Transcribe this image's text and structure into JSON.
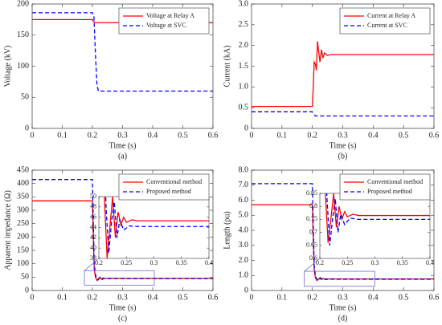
{
  "chart_data": [
    {
      "type": "line",
      "ylabel": "Voltage (kV)",
      "xlabel": "Time (s)",
      "caption": "(a)",
      "xlim": [
        0,
        0.6
      ],
      "xticks": [
        0,
        0.1,
        0.2,
        0.3,
        0.4,
        0.5,
        0.6
      ],
      "ylim": [
        0,
        200
      ],
      "yticks": [
        0,
        50,
        100,
        150,
        200
      ],
      "legend": "upper right",
      "series": [
        {
          "name": "Voltage at Relay A",
          "color": "#ff0000",
          "dashed": false,
          "x": [
            0,
            0.2,
            0.203,
            0.21,
            0.6
          ],
          "values": [
            175,
            175,
            172,
            170,
            170
          ]
        },
        {
          "name": "Voltage at SVC",
          "color": "#0000ff",
          "dashed": true,
          "x": [
            0,
            0.2,
            0.205,
            0.21,
            0.215,
            0.22,
            0.6
          ],
          "values": [
            186,
            186,
            180,
            120,
            70,
            60,
            60
          ]
        }
      ]
    },
    {
      "type": "line",
      "ylabel": "Current (kA)",
      "xlabel": "Time (s)",
      "caption": "(b)",
      "xlim": [
        0,
        0.6
      ],
      "xticks": [
        0,
        0.1,
        0.2,
        0.3,
        0.4,
        0.5,
        0.6
      ],
      "ylim": [
        0,
        3
      ],
      "yticks": [
        0,
        0.5,
        {
          "value": 1,
          "label": "1.0"
        },
        1.5,
        {
          "value": 2,
          "label": "2.0"
        },
        2.5,
        {
          "value": 3,
          "label": "3.0"
        }
      ],
      "legend": "upper right",
      "series": [
        {
          "name": "Current at Relay A",
          "color": "#ff0000",
          "dashed": false,
          "x": [
            0,
            0.2,
            0.203,
            0.206,
            0.21,
            0.213,
            0.217,
            0.22,
            0.225,
            0.23,
            0.235,
            0.24,
            0.25,
            0.26,
            0.6
          ],
          "values": [
            0.53,
            0.53,
            1.0,
            1.6,
            1.55,
            1.4,
            2.1,
            1.9,
            1.6,
            1.9,
            1.7,
            1.82,
            1.76,
            1.78,
            1.78
          ]
        },
        {
          "name": "Current at SVC",
          "color": "#0000ff",
          "dashed": true,
          "x": [
            0,
            0.2,
            0.21,
            0.6
          ],
          "values": [
            0.4,
            0.4,
            0.3,
            0.3
          ]
        }
      ]
    },
    {
      "type": "line",
      "ylabel": "Apparent impedance (Ω)",
      "xlabel": "Time (s)",
      "caption": "(c)",
      "xlim": [
        0,
        0.6
      ],
      "xticks": [
        0,
        0.1,
        0.2,
        0.3,
        0.4,
        0.5,
        0.6
      ],
      "ylim": [
        0,
        450
      ],
      "yticks": [
        0,
        50,
        100,
        150,
        200,
        250,
        300,
        350,
        400,
        450
      ],
      "legend": "upper right",
      "inset": {
        "xlim": [
          0.2,
          0.4
        ],
        "xticks": [
          0.2,
          0.25,
          0.3,
          0.35,
          0.4
        ],
        "ylim": [
          38,
          50
        ],
        "yticks": [
          38,
          40,
          42,
          44,
          46,
          48,
          50
        ],
        "box_color": "#6a6ad6"
      },
      "series": [
        {
          "name": "Conventional method",
          "color": "#ff0000",
          "dashed": false,
          "x": [
            0,
            0.2,
            0.203,
            0.206,
            0.21,
            0.215,
            0.22,
            0.225,
            0.23,
            0.235,
            0.24,
            0.245,
            0.25,
            0.26,
            0.27,
            0.6
          ],
          "values": [
            335,
            335,
            200,
            80,
            50,
            38,
            44,
            50,
            42,
            47,
            44.5,
            46,
            45,
            45.5,
            45.3,
            45.3
          ]
        },
        {
          "name": "Proposed method",
          "color": "#0000ff",
          "dashed": true,
          "x": [
            0,
            0.2,
            0.203,
            0.206,
            0.21,
            0.213,
            0.218,
            0.223,
            0.228,
            0.233,
            0.238,
            0.245,
            0.255,
            0.27,
            0.6
          ],
          "values": [
            415,
            415,
            250,
            100,
            60,
            48,
            39,
            45,
            49,
            42,
            45.5,
            43.5,
            44.3,
            44.2,
            44.2
          ]
        }
      ]
    },
    {
      "type": "line",
      "ylabel": "Length (pu)",
      "xlabel": "Time (s)",
      "caption": "(d)",
      "xlim": [
        0,
        0.6
      ],
      "xticks": [
        0,
        0.1,
        0.2,
        0.3,
        0.4,
        0.5,
        0.6
      ],
      "ylim": [
        0,
        8
      ],
      "yticks": [
        0,
        {
          "value": 1,
          "label": "1.0"
        },
        {
          "value": 2,
          "label": "2.0"
        },
        {
          "value": 3,
          "label": "3.0"
        },
        {
          "value": 4,
          "label": "4.0"
        },
        {
          "value": 5,
          "label": "5.0"
        },
        {
          "value": 6,
          "label": "6.0"
        },
        {
          "value": 7,
          "label": "7.0"
        },
        {
          "value": 8,
          "label": "8.0"
        }
      ],
      "legend": "upper right",
      "inset": {
        "xlim": [
          0.2,
          0.4
        ],
        "xticks": [
          0.2,
          0.25,
          0.3,
          0.35,
          0.4
        ],
        "ylim": [
          0.6,
          0.85
        ],
        "yticks": [
          0.6,
          0.65,
          0.7,
          0.75,
          0.8,
          0.85
        ],
        "box_color": "#6a6ad6"
      },
      "series": [
        {
          "name": "Conventional method",
          "color": "#ff0000",
          "dashed": false,
          "x": [
            0,
            0.2,
            0.203,
            0.206,
            0.21,
            0.215,
            0.22,
            0.225,
            0.23,
            0.235,
            0.24,
            0.245,
            0.25,
            0.26,
            0.27,
            0.6
          ],
          "values": [
            5.7,
            5.7,
            3.4,
            1.4,
            0.85,
            0.66,
            0.75,
            0.85,
            0.72,
            0.8,
            0.75,
            0.78,
            0.76,
            0.77,
            0.765,
            0.765
          ]
        },
        {
          "name": "Proposed method",
          "color": "#0000ff",
          "dashed": true,
          "x": [
            0,
            0.2,
            0.203,
            0.206,
            0.21,
            0.213,
            0.218,
            0.223,
            0.228,
            0.233,
            0.238,
            0.245,
            0.255,
            0.27,
            0.6
          ],
          "values": [
            7.1,
            7.1,
            4.3,
            1.7,
            1.0,
            0.83,
            0.65,
            0.75,
            0.83,
            0.7,
            0.77,
            0.73,
            0.755,
            0.75,
            0.75
          ]
        }
      ]
    }
  ]
}
